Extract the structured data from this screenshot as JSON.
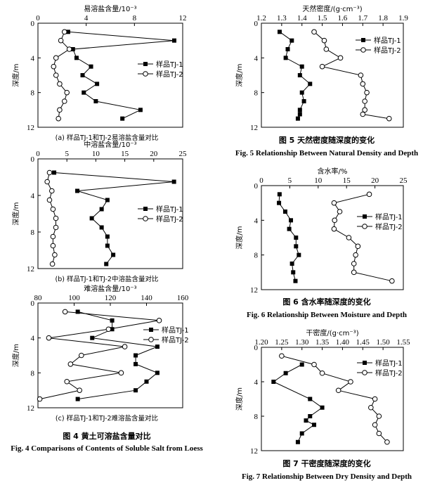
{
  "chart_data": [
    {
      "id": "c1",
      "type": "line",
      "xlabel": "易溶盐含量/10⁻³",
      "ylabel": "深度/m",
      "xlim": [
        0,
        12
      ],
      "xticks": [
        0,
        4,
        8,
        12
      ],
      "ylim": [
        0,
        12
      ],
      "yticks": [
        0,
        4,
        8,
        12
      ],
      "series": [
        {
          "name": "样品TJ-1",
          "marker": "square",
          "x": [
            2.5,
            11.3,
            2.9,
            3.2,
            4.4,
            3.7,
            4.9,
            3.8,
            4.8,
            8.5,
            7.0
          ],
          "y": [
            1.0,
            2.0,
            3.0,
            4.0,
            5.0,
            6.0,
            7.0,
            8.0,
            9.0,
            10.0,
            11.0
          ]
        },
        {
          "name": "样品TJ-2",
          "marker": "circle",
          "x": [
            2.2,
            1.9,
            2.6,
            1.5,
            1.3,
            1.5,
            1.8,
            2.4,
            2.2,
            1.8,
            1.7
          ],
          "y": [
            1.0,
            2.0,
            3.0,
            4.0,
            5.0,
            6.0,
            7.0,
            8.0,
            9.0,
            10.0,
            11.0
          ]
        }
      ]
    },
    {
      "id": "c2",
      "type": "line",
      "xlabel": "中溶盐含量/10⁻³",
      "ylabel": "深度/m",
      "xlim": [
        0,
        25
      ],
      "xticks": [
        0,
        5,
        10,
        15,
        20,
        25
      ],
      "ylim": [
        0,
        12
      ],
      "yticks": [
        0,
        4,
        8,
        12
      ],
      "series": [
        {
          "name": "样品TJ-1",
          "marker": "square",
          "x": [
            2.8,
            23.5,
            6.8,
            12.0,
            11.0,
            9.3,
            11.0,
            12.0,
            12.0,
            13.0,
            11.8
          ],
          "y": [
            1.5,
            2.5,
            3.5,
            4.5,
            5.5,
            6.5,
            7.5,
            8.5,
            9.5,
            10.5,
            11.5
          ]
        },
        {
          "name": "样品TJ-2",
          "marker": "circle",
          "x": [
            2.0,
            1.6,
            2.4,
            2.0,
            2.6,
            3.1,
            3.1,
            2.6,
            2.6,
            2.9,
            2.5
          ],
          "y": [
            1.5,
            2.5,
            3.5,
            4.5,
            5.5,
            6.5,
            7.5,
            8.5,
            9.5,
            10.5,
            11.5
          ]
        }
      ]
    },
    {
      "id": "c3",
      "type": "line",
      "xlabel": "难溶盐含量/10⁻³",
      "ylabel": "深度/m",
      "xlim": [
        80,
        160
      ],
      "xticks": [
        80,
        100,
        120,
        140,
        160
      ],
      "ylim": [
        0,
        12
      ],
      "yticks": [
        0,
        4,
        8,
        12
      ],
      "series": [
        {
          "name": "样品TJ-1",
          "marker": "square",
          "x": [
            102,
            121,
            121,
            110,
            146,
            134,
            134,
            146,
            140,
            134,
            102
          ],
          "y": [
            1.0,
            2.0,
            3.0,
            4.0,
            5.0,
            6.0,
            7.0,
            8.0,
            9.0,
            10.0,
            11.0
          ]
        },
        {
          "name": "样品TJ-2",
          "marker": "circle",
          "x": [
            95,
            147,
            119,
            86,
            128,
            104,
            98,
            126,
            96,
            103,
            81
          ],
          "y": [
            1.0,
            2.0,
            3.0,
            4.0,
            5.0,
            6.0,
            7.0,
            8.0,
            9.0,
            10.0,
            11.0
          ]
        }
      ]
    },
    {
      "id": "c5",
      "type": "line",
      "xlabel": "天然密度/(g·cm⁻³)",
      "ylabel": "深度/m",
      "xlim": [
        1.2,
        1.9
      ],
      "xticks": [
        1.2,
        1.3,
        1.4,
        1.5,
        1.6,
        1.7,
        1.8,
        1.9
      ],
      "ylim": [
        0,
        12
      ],
      "yticks": [
        0,
        4,
        8,
        12
      ],
      "series": [
        {
          "name": "样品TJ-1",
          "marker": "square",
          "x": [
            1.29,
            1.35,
            1.33,
            1.32,
            1.4,
            1.39,
            1.44,
            1.4,
            1.41,
            1.39,
            1.39,
            1.38
          ],
          "y": [
            1.0,
            2.0,
            3.0,
            4.0,
            5.0,
            6.0,
            7.0,
            8.0,
            9.0,
            10.0,
            10.5,
            11.0
          ]
        },
        {
          "name": "样品TJ-2",
          "marker": "circle",
          "x": [
            1.46,
            1.51,
            1.52,
            1.59,
            1.5,
            1.69,
            1.7,
            1.72,
            1.71,
            1.71,
            1.7,
            1.83
          ],
          "y": [
            1.0,
            2.0,
            3.0,
            4.0,
            5.0,
            6.0,
            7.0,
            8.0,
            9.0,
            10.0,
            10.5,
            11.0
          ]
        }
      ]
    },
    {
      "id": "c6",
      "type": "line",
      "xlabel": "含水率/%",
      "ylabel": "深度/m",
      "xlim": [
        0,
        25
      ],
      "xticks": [
        0,
        5,
        10,
        15,
        20,
        25
      ],
      "ylim": [
        0,
        12
      ],
      "yticks": [
        0,
        4,
        8,
        12
      ],
      "series": [
        {
          "name": "样品TJ-1",
          "marker": "square",
          "x": [
            3.2,
            3.1,
            4.2,
            5.2,
            4.9,
            6.1,
            6.1,
            6.6,
            5.4,
            5.6,
            6.0
          ],
          "y": [
            1.0,
            2.0,
            3.0,
            4.0,
            5.0,
            6.0,
            7.0,
            8.0,
            9.0,
            10.0,
            11.0
          ]
        },
        {
          "name": "样品TJ-2",
          "marker": "circle",
          "x": [
            19.0,
            12.8,
            13.8,
            12.9,
            12.8,
            15.4,
            17.0,
            16.6,
            16.3,
            16.3,
            23.0
          ],
          "y": [
            1.0,
            2.0,
            3.0,
            4.0,
            5.0,
            6.0,
            7.0,
            8.0,
            9.0,
            10.0,
            11.0
          ]
        }
      ]
    },
    {
      "id": "c7",
      "type": "line",
      "xlabel": "干密度/(g·cm⁻³)",
      "ylabel": "深度/m",
      "xlim": [
        1.2,
        1.55
      ],
      "xticks": [
        1.2,
        1.25,
        1.3,
        1.35,
        1.4,
        1.45,
        1.5,
        1.55
      ],
      "ylim": [
        0,
        12
      ],
      "yticks": [
        0,
        4,
        8,
        12
      ],
      "series": [
        {
          "name": "样品TJ-1",
          "marker": "square",
          "x": [
            1.3,
            1.26,
            1.23,
            1.32,
            1.35,
            1.32,
            1.31,
            1.33,
            1.3,
            1.29
          ],
          "y": [
            2.0,
            3.0,
            4.0,
            6.0,
            7.0,
            8.0,
            8.5,
            9.0,
            10.0,
            11.0
          ],
          "note_hidden": ""
        },
        {
          "name": "样品TJ-2",
          "marker": "circle",
          "x": [
            1.25,
            1.33,
            1.35,
            1.42,
            1.39,
            1.48,
            1.47,
            1.49,
            1.48,
            1.49,
            1.51
          ],
          "y": [
            1.0,
            2.0,
            3.0,
            4.0,
            5.0,
            6.0,
            7.0,
            8.0,
            9.0,
            10.0,
            11.0
          ]
        }
      ]
    }
  ],
  "captions": {
    "sub_a": "(a)  样品TJ-1和TJ-2易溶盐含量对比",
    "sub_b": "(b)  样品TJ-1和TJ-2中溶盐含量对比",
    "sub_c": "(c)  样品TJ-1和TJ-2难溶盐含量对比",
    "fig4_cn": "图 4   黄土可溶盐含量对比",
    "fig4_en": "Fig. 4    Comparisons of Contents of Soluble Salt from Loess",
    "fig5_cn": "图 5   天然密度随深度的变化",
    "fig5_en": "Fig. 5    Relationship Between Natural Density and Depth",
    "fig6_cn": "图 6   含水率随深度的变化",
    "fig6_en": "Fig. 6    Relationship Between Moisture and Depth",
    "fig7_cn": "图 7   干密度随深度的变化",
    "fig7_en": "Fig. 7    Relationship Between Dry Density and Depth"
  }
}
